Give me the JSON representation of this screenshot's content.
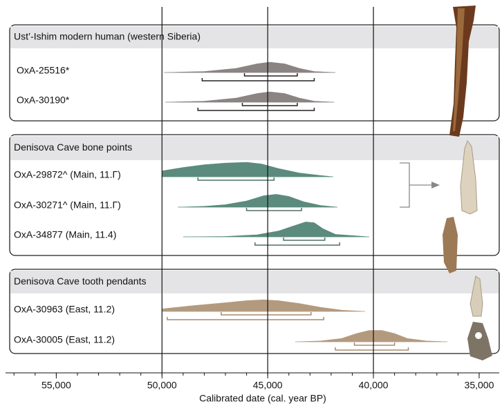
{
  "chart_data": {
    "type": "range",
    "xlabel": "Calibrated date (cal. year BP)",
    "xlim": [
      57400,
      34050
    ],
    "xticks": [
      {
        "value": 55000,
        "label": "55,000"
      },
      {
        "value": 50000,
        "label": "50,000"
      },
      {
        "value": 45000,
        "label": "45,000"
      },
      {
        "value": 40000,
        "label": "40,000"
      },
      {
        "value": 35000,
        "label": "35,000"
      }
    ],
    "xminorticks": [
      57000,
      56000,
      55000,
      54000,
      53000,
      52000,
      51000,
      50000,
      49000,
      48000,
      47000,
      46000,
      45000,
      44000,
      43000,
      42000,
      41000,
      40000,
      39000,
      38000,
      37000,
      36000,
      35000
    ],
    "reference_lines": [
      50000,
      45000,
      40000
    ],
    "groups": [
      {
        "name": "Ust’-Ishim modern human (western Siberia)",
        "color": "#8a8483",
        "title_color": "#111111",
        "bracket_color": "#222222",
        "samples": [
          {
            "label": "OxA-25516*",
            "curve_x": [
              49900,
              48000,
              46500,
              45500,
              44900,
              44200,
              43500,
              42800,
              41800
            ],
            "curve_y": [
              0,
              0.05,
              0.2,
              0.42,
              0.5,
              0.42,
              0.2,
              0.05,
              0
            ],
            "ranges": [
              [
                46100,
                43600
              ],
              [
                48100,
                42800
              ]
            ]
          },
          {
            "label": "OxA-30190*",
            "curve_x": [
              49850,
              48000,
              46500,
              45500,
              44900,
              44200,
              43500,
              42800,
              41850
            ],
            "curve_y": [
              0,
              0.05,
              0.2,
              0.42,
              0.5,
              0.42,
              0.2,
              0.05,
              0
            ],
            "ranges": [
              [
                46200,
                43600
              ],
              [
                48300,
                42800
              ]
            ]
          }
        ]
      },
      {
        "name": "Denisova Cave bone points",
        "color": "#5b8b7d",
        "title_color": "#5d7f78",
        "bracket_color": "#4f6e67",
        "samples": [
          {
            "label": "OxA-29872^ (Main, 11.Г)",
            "curve_x": [
              50000,
              49000,
              48000,
              47000,
              46000,
              45300,
              44500,
              43500,
              42500,
              41900
            ],
            "curve_y": [
              0.28,
              0.45,
              0.58,
              0.66,
              0.7,
              0.62,
              0.4,
              0.18,
              0.06,
              0
            ],
            "ranges": [
              [
                48300,
                44700
              ]
            ]
          },
          {
            "label": "OxA-30271^ (Main, 11.Г)",
            "curve_x": [
              49250,
              48000,
              47000,
              46000,
              45200,
              44600,
              44000,
              43300,
              42500,
              41700
            ],
            "curve_y": [
              0,
              0.04,
              0.12,
              0.3,
              0.55,
              0.62,
              0.52,
              0.26,
              0.08,
              0
            ],
            "ranges": [
              [
                46000,
                43400
              ]
            ]
          },
          {
            "label": "OxA-34877 (Main, 11.4)",
            "curve_x": [
              49000,
              47000,
              45500,
              44500,
              43800,
              43200,
              42800,
              42400,
              41800,
              40200
            ],
            "curve_y": [
              0,
              0.02,
              0.1,
              0.28,
              0.52,
              0.72,
              0.68,
              0.4,
              0.12,
              0
            ],
            "ranges": [
              [
                44250,
                42300
              ],
              [
                45600,
                41600
              ]
            ]
          }
        ]
      },
      {
        "name": "Denisova Cave tooth pendants",
        "color": "#b39a7f",
        "title_color": "#9b7f61",
        "bracket_color": "#a58a6d",
        "samples": [
          {
            "label": "OxA-30963 (East, 11.2)",
            "curve_x": [
              50000,
              48500,
              47000,
              46000,
              45200,
              44500,
              43500,
              42500,
              41500,
              40400
            ],
            "curve_y": [
              0.12,
              0.28,
              0.42,
              0.52,
              0.56,
              0.52,
              0.38,
              0.2,
              0.06,
              0
            ],
            "ranges": [
              [
                47200,
                42950
              ],
              [
                49750,
                42350
              ]
            ]
          },
          {
            "label": "OxA-30005 (East, 11.2)",
            "curve_x": [
              43700,
              42500,
              41500,
              40800,
              40200,
              39600,
              39000,
              38400,
              37500,
              36500
            ],
            "curve_y": [
              0,
              0.04,
              0.16,
              0.4,
              0.55,
              0.55,
              0.4,
              0.16,
              0.04,
              0
            ],
            "ranges": [
              [
                40900,
                39000
              ],
              [
                41800,
                38350
              ]
            ]
          }
        ]
      }
    ]
  }
}
